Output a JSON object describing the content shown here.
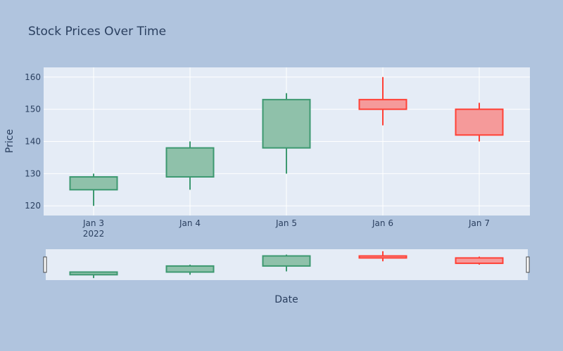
{
  "chart_data": {
    "type": "candlestick",
    "title": "Stock Prices Over Time",
    "xlabel": "Date",
    "ylabel": "Price",
    "x_ticks": [
      "Jan 3",
      "Jan 4",
      "Jan 5",
      "Jan 6",
      "Jan 7"
    ],
    "x_year_label": "2022",
    "y_ticks": [
      120,
      130,
      140,
      150,
      160
    ],
    "ylim": [
      117,
      163
    ],
    "grid": true,
    "range_slider": true,
    "colors": {
      "page_bg": "#b0c4de",
      "plot_bg": "#e5ecf6",
      "increasing": "#3d9970",
      "increasing_fill": "#8fc1aa",
      "decreasing": "#ff4136",
      "decreasing_fill": "#f59a9a"
    },
    "candles": [
      {
        "date": "Jan 3",
        "open": 125,
        "high": 130,
        "low": 120,
        "close": 129
      },
      {
        "date": "Jan 4",
        "open": 129,
        "high": 140,
        "low": 125,
        "close": 138
      },
      {
        "date": "Jan 5",
        "open": 138,
        "high": 155,
        "low": 130,
        "close": 153
      },
      {
        "date": "Jan 6",
        "open": 153,
        "high": 160,
        "low": 145,
        "close": 150
      },
      {
        "date": "Jan 7",
        "open": 150,
        "high": 152,
        "low": 140,
        "close": 142
      }
    ]
  }
}
